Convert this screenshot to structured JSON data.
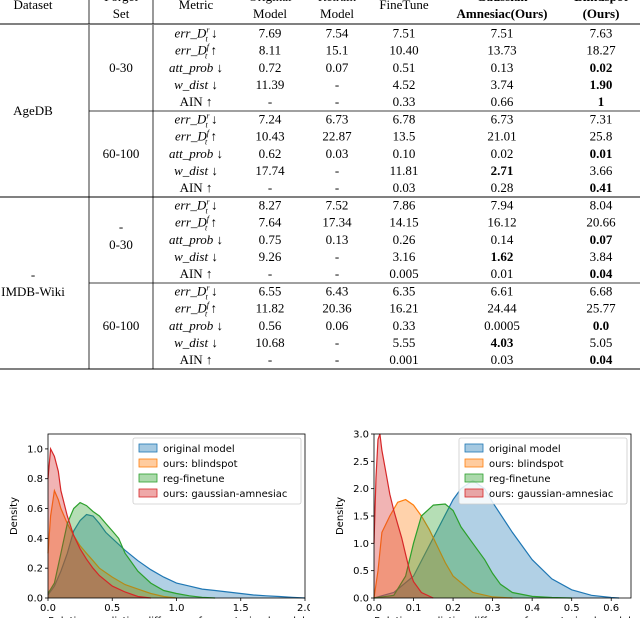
{
  "table": {
    "headers": [
      {
        "key": "dataset",
        "lines": [
          "Dataset"
        ]
      },
      {
        "key": "forget_set",
        "lines": [
          "Forget",
          "Set"
        ]
      },
      {
        "key": "metric",
        "lines": [
          "Metric"
        ]
      },
      {
        "key": "original",
        "lines": [
          "Original",
          "Model"
        ]
      },
      {
        "key": "retrain",
        "lines": [
          "Retrain",
          "Model"
        ]
      },
      {
        "key": "finetune",
        "lines": [
          "FineTune"
        ]
      },
      {
        "key": "gaussian",
        "lines": [
          "Gaussian",
          "Amnesiac(Ours)"
        ],
        "bold": true
      },
      {
        "key": "blindspot",
        "lines": [
          "Blindspot",
          "(Ours)"
        ],
        "bold": true
      }
    ],
    "metric_names": [
      "err_D_t^r ↓",
      "err_D_t^f ↑",
      "att_prob ↓",
      "w_dist ↓",
      "AIN ↑"
    ],
    "groups": [
      {
        "dataset": "AgeDB",
        "dataset_prefix": "",
        "blocks": [
          {
            "forget_set": "0-30",
            "forget_prefix": "",
            "rows": [
              {
                "values": [
                  "7.69",
                  "7.54",
                  "7.51",
                  "7.51",
                  "7.63"
                ],
                "bold": []
              },
              {
                "values": [
                  "8.11",
                  "15.1",
                  "10.40",
                  "13.73",
                  "18.27"
                ],
                "bold": []
              },
              {
                "values": [
                  "0.72",
                  "0.07",
                  "0.51",
                  "0.13",
                  "0.02"
                ],
                "bold": [
                  4
                ]
              },
              {
                "values": [
                  "11.39",
                  "-",
                  "4.52",
                  "3.74",
                  "1.90"
                ],
                "bold": [
                  4
                ]
              },
              {
                "values": [
                  "-",
                  "-",
                  "0.33",
                  "0.66",
                  "1"
                ],
                "bold": [
                  4
                ]
              }
            ]
          },
          {
            "forget_set": "60-100",
            "forget_prefix": "",
            "rows": [
              {
                "values": [
                  "7.24",
                  "6.73",
                  "6.78",
                  "6.73",
                  "7.31"
                ],
                "bold": []
              },
              {
                "values": [
                  "10.43",
                  "22.87",
                  "13.5",
                  "21.01",
                  "25.8"
                ],
                "bold": []
              },
              {
                "values": [
                  "0.62",
                  "0.03",
                  "0.10",
                  "0.02",
                  "0.01"
                ],
                "bold": [
                  4
                ]
              },
              {
                "values": [
                  "17.74",
                  "-",
                  "11.81",
                  "2.71",
                  "3.66"
                ],
                "bold": [
                  3
                ]
              },
              {
                "values": [
                  "-",
                  "-",
                  "0.03",
                  "0.28",
                  "0.41"
                ],
                "bold": [
                  4
                ]
              }
            ]
          }
        ]
      },
      {
        "dataset": "IMDB-Wiki",
        "dataset_prefix": "-",
        "blocks": [
          {
            "forget_set": "0-30",
            "forget_prefix": "-",
            "rows": [
              {
                "values": [
                  "8.27",
                  "7.52",
                  "7.86",
                  "7.94",
                  "8.04"
                ],
                "bold": []
              },
              {
                "values": [
                  "7.64",
                  "17.34",
                  "14.15",
                  "16.12",
                  "20.66"
                ],
                "bold": []
              },
              {
                "values": [
                  "0.75",
                  "0.13",
                  "0.26",
                  "0.14",
                  "0.07"
                ],
                "bold": [
                  4
                ]
              },
              {
                "values": [
                  "9.26",
                  "-",
                  "3.16",
                  "1.62",
                  "3.84"
                ],
                "bold": [
                  3
                ]
              },
              {
                "values": [
                  "-",
                  "-",
                  "0.005",
                  "0.01",
                  "0.04"
                ],
                "bold": [
                  4
                ]
              }
            ]
          },
          {
            "forget_set": "60-100",
            "forget_prefix": "",
            "rows": [
              {
                "values": [
                  "6.55",
                  "6.43",
                  "6.35",
                  "6.61",
                  "6.68"
                ],
                "bold": []
              },
              {
                "values": [
                  "11.82",
                  "20.36",
                  "16.21",
                  "24.44",
                  "25.77"
                ],
                "bold": []
              },
              {
                "values": [
                  "0.56",
                  "0.06",
                  "0.33",
                  "0.0005",
                  "0.0"
                ],
                "bold": [
                  4
                ]
              },
              {
                "values": [
                  "10.68",
                  "-",
                  "5.55",
                  "4.03",
                  "5.05"
                ],
                "bold": [
                  3
                ]
              },
              {
                "values": [
                  "-",
                  "-",
                  "0.001",
                  "0.03",
                  "0.04"
                ],
                "bold": [
                  4
                ]
              }
            ]
          }
        ]
      }
    ]
  },
  "chart_data": [
    {
      "type": "area",
      "xlabel": "Relative prediction difference from retrained model",
      "ylabel": "Density",
      "xlim": [
        0,
        2.0
      ],
      "ylim": [
        0,
        1.1
      ],
      "xticks": [
        "0.0",
        "0.5",
        "1.0",
        "1.5",
        "2.0"
      ],
      "yticks": [
        "0.0",
        "0.2",
        "0.4",
        "0.6",
        "0.8",
        "1.0"
      ],
      "legend_position": "top-right",
      "series": [
        {
          "name": "original model",
          "color": "#1f77b4",
          "x": [
            0,
            0.05,
            0.1,
            0.15,
            0.2,
            0.25,
            0.3,
            0.35,
            0.4,
            0.45,
            0.5,
            0.6,
            0.7,
            0.8,
            0.9,
            1.0,
            1.1,
            1.2,
            1.3,
            1.4,
            1.5,
            1.6,
            1.7,
            1.8,
            1.9,
            2.0
          ],
          "y": [
            0.02,
            0.08,
            0.18,
            0.3,
            0.45,
            0.52,
            0.56,
            0.55,
            0.5,
            0.44,
            0.4,
            0.32,
            0.25,
            0.19,
            0.14,
            0.1,
            0.08,
            0.06,
            0.05,
            0.04,
            0.03,
            0.02,
            0.015,
            0.01,
            0.005,
            0.0
          ]
        },
        {
          "name": "ours: blindspot",
          "color": "#ff7f0e",
          "x": [
            0,
            0.02,
            0.05,
            0.08,
            0.1,
            0.15,
            0.2,
            0.25,
            0.3,
            0.35,
            0.4,
            0.5,
            0.6,
            0.7,
            0.8,
            0.9,
            1.0
          ],
          "y": [
            0.3,
            0.55,
            0.72,
            0.66,
            0.6,
            0.5,
            0.42,
            0.35,
            0.3,
            0.25,
            0.2,
            0.14,
            0.09,
            0.06,
            0.03,
            0.01,
            0.0
          ]
        },
        {
          "name": "reg-finetune",
          "color": "#2ca02c",
          "x": [
            0,
            0.05,
            0.1,
            0.15,
            0.2,
            0.25,
            0.3,
            0.35,
            0.4,
            0.45,
            0.5,
            0.55,
            0.6,
            0.7,
            0.8,
            0.9,
            1.0,
            1.1,
            1.2,
            1.3
          ],
          "y": [
            0.03,
            0.1,
            0.3,
            0.5,
            0.6,
            0.64,
            0.62,
            0.58,
            0.55,
            0.5,
            0.45,
            0.4,
            0.3,
            0.18,
            0.1,
            0.05,
            0.03,
            0.015,
            0.005,
            0.0
          ]
        },
        {
          "name": "ours: gaussian-amnesiac",
          "color": "#d62728",
          "x": [
            0,
            0.02,
            0.05,
            0.08,
            0.1,
            0.15,
            0.2,
            0.25,
            0.3,
            0.35,
            0.4,
            0.5,
            0.6,
            0.7,
            0.8
          ],
          "y": [
            0.8,
            1.0,
            0.95,
            0.85,
            0.72,
            0.55,
            0.42,
            0.33,
            0.26,
            0.2,
            0.15,
            0.08,
            0.04,
            0.01,
            0.0
          ]
        }
      ]
    },
    {
      "type": "area",
      "xlabel": "Relative prediction difference from retrained model",
      "ylabel": "Density",
      "xlim": [
        0,
        0.65
      ],
      "ylim": [
        0,
        3.0
      ],
      "xticks": [
        "0.0",
        "0.1",
        "0.2",
        "0.3",
        "0.4",
        "0.5",
        "0.6"
      ],
      "yticks": [
        "0.0",
        "0.5",
        "1.0",
        "1.5",
        "2.0",
        "2.5",
        "3.0"
      ],
      "legend_position": "top-right",
      "series": [
        {
          "name": "original model",
          "color": "#1f77b4",
          "x": [
            0,
            0.05,
            0.1,
            0.15,
            0.2,
            0.22,
            0.25,
            0.28,
            0.3,
            0.35,
            0.4,
            0.45,
            0.5,
            0.55,
            0.6,
            0.62
          ],
          "y": [
            0.0,
            0.1,
            0.4,
            1.1,
            1.8,
            2.0,
            2.15,
            2.0,
            1.75,
            1.2,
            0.7,
            0.35,
            0.15,
            0.05,
            0.01,
            0.0
          ]
        },
        {
          "name": "ours: blindspot",
          "color": "#ff7f0e",
          "x": [
            0,
            0.01,
            0.02,
            0.04,
            0.06,
            0.08,
            0.1,
            0.12,
            0.14,
            0.16,
            0.18,
            0.2,
            0.25,
            0.3,
            0.35
          ],
          "y": [
            0.0,
            0.5,
            1.2,
            1.5,
            1.75,
            1.8,
            1.7,
            1.5,
            1.25,
            0.95,
            0.65,
            0.4,
            0.1,
            0.02,
            0.0
          ]
        },
        {
          "name": "reg-finetune",
          "color": "#2ca02c",
          "x": [
            0,
            0.05,
            0.08,
            0.1,
            0.12,
            0.15,
            0.18,
            0.2,
            0.22,
            0.25,
            0.28,
            0.3,
            0.32,
            0.35,
            0.4,
            0.45,
            0.5
          ],
          "y": [
            0.0,
            0.05,
            0.4,
            1.0,
            1.5,
            1.7,
            1.72,
            1.6,
            1.3,
            1.0,
            0.7,
            0.45,
            0.25,
            0.1,
            0.03,
            0.01,
            0.0
          ]
        },
        {
          "name": "ours: gaussian-amnesiac",
          "color": "#d62728",
          "x": [
            0,
            0.005,
            0.01,
            0.015,
            0.02,
            0.03,
            0.04,
            0.05,
            0.06,
            0.07,
            0.08,
            0.09,
            0.1,
            0.12,
            0.15
          ],
          "y": [
            1.0,
            2.2,
            2.9,
            3.0,
            2.7,
            2.3,
            1.9,
            1.6,
            1.35,
            1.1,
            0.8,
            0.5,
            0.3,
            0.1,
            0.0
          ]
        }
      ]
    }
  ]
}
